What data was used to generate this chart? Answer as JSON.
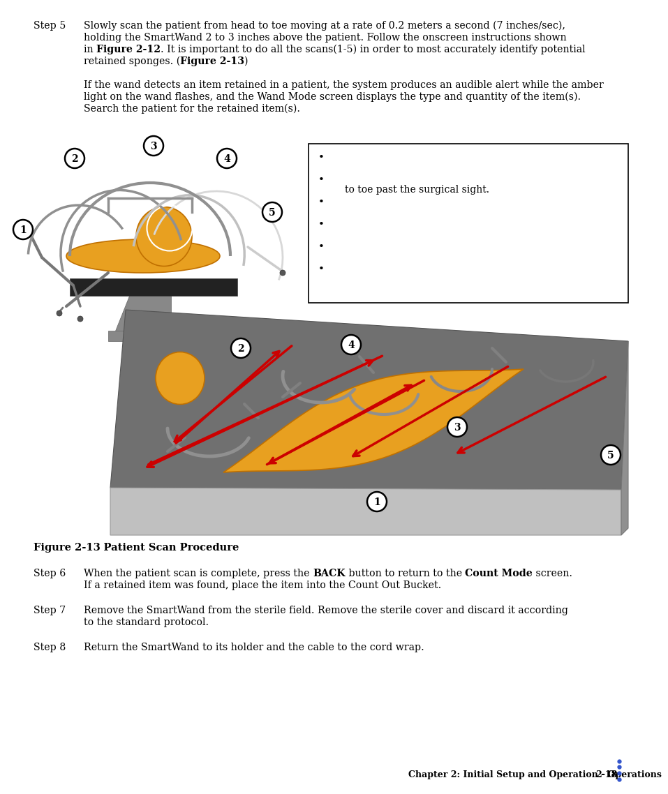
{
  "page_width": 8.99,
  "page_height": 11.19,
  "bg_color": "#ffffff",
  "text_color": "#000000",
  "step5_label": "Step 5",
  "step5_line1": "Slowly scan the patient from head to toe moving at a rate of 0.2 meters a second (7 inches/sec),",
  "step5_line2": "holding the SmartWand 2 to 3 inches above the patient. Follow the onscreen instructions shown",
  "step5_line4": "retained sponges. (",
  "step5_line4b": "Figure 2-13",
  "step5_line4c": ")",
  "step5_para2_line1": "If the wand detects an item retained in a patient, the system produces an audible alert while the amber",
  "step5_para2_line2": "light on the wand flashes, and the Wand Mode screen displays the type and quantity of the item(s).",
  "step5_para2_line3": "Search the patient for the retained item(s).",
  "figure_caption": "Figure 2-13",
  "figure_title": "Patient Scan Procedure",
  "step6_label": "Step 6",
  "step6_line2": "If a retained item was found, place the item into the Count Out Bucket.",
  "step7_label": "Step 7",
  "step7_line1": "Remove the SmartWand from the sterile field. Remove the sterile cover and discard it according",
  "step7_line2": "to the standard protocol.",
  "step8_label": "Step 8",
  "step8_text": "Return the SmartWand to its holder and the cable to the cord wrap.",
  "footer_text": "Chapter 2: Initial Setup and Operation - Operations",
  "footer_page": "2-18",
  "orange": "#E8A020",
  "orange_dark": "#C07000",
  "gray_med": "#888888",
  "gray_light": "#b8b8b8",
  "gray_dark": "#555555",
  "gray_table": "#6a6a6a",
  "gray_wand": "#909090",
  "red_arrow": "#cc0000",
  "accent_dots_color": "#3355cc",
  "white_circle": "#ffffff"
}
